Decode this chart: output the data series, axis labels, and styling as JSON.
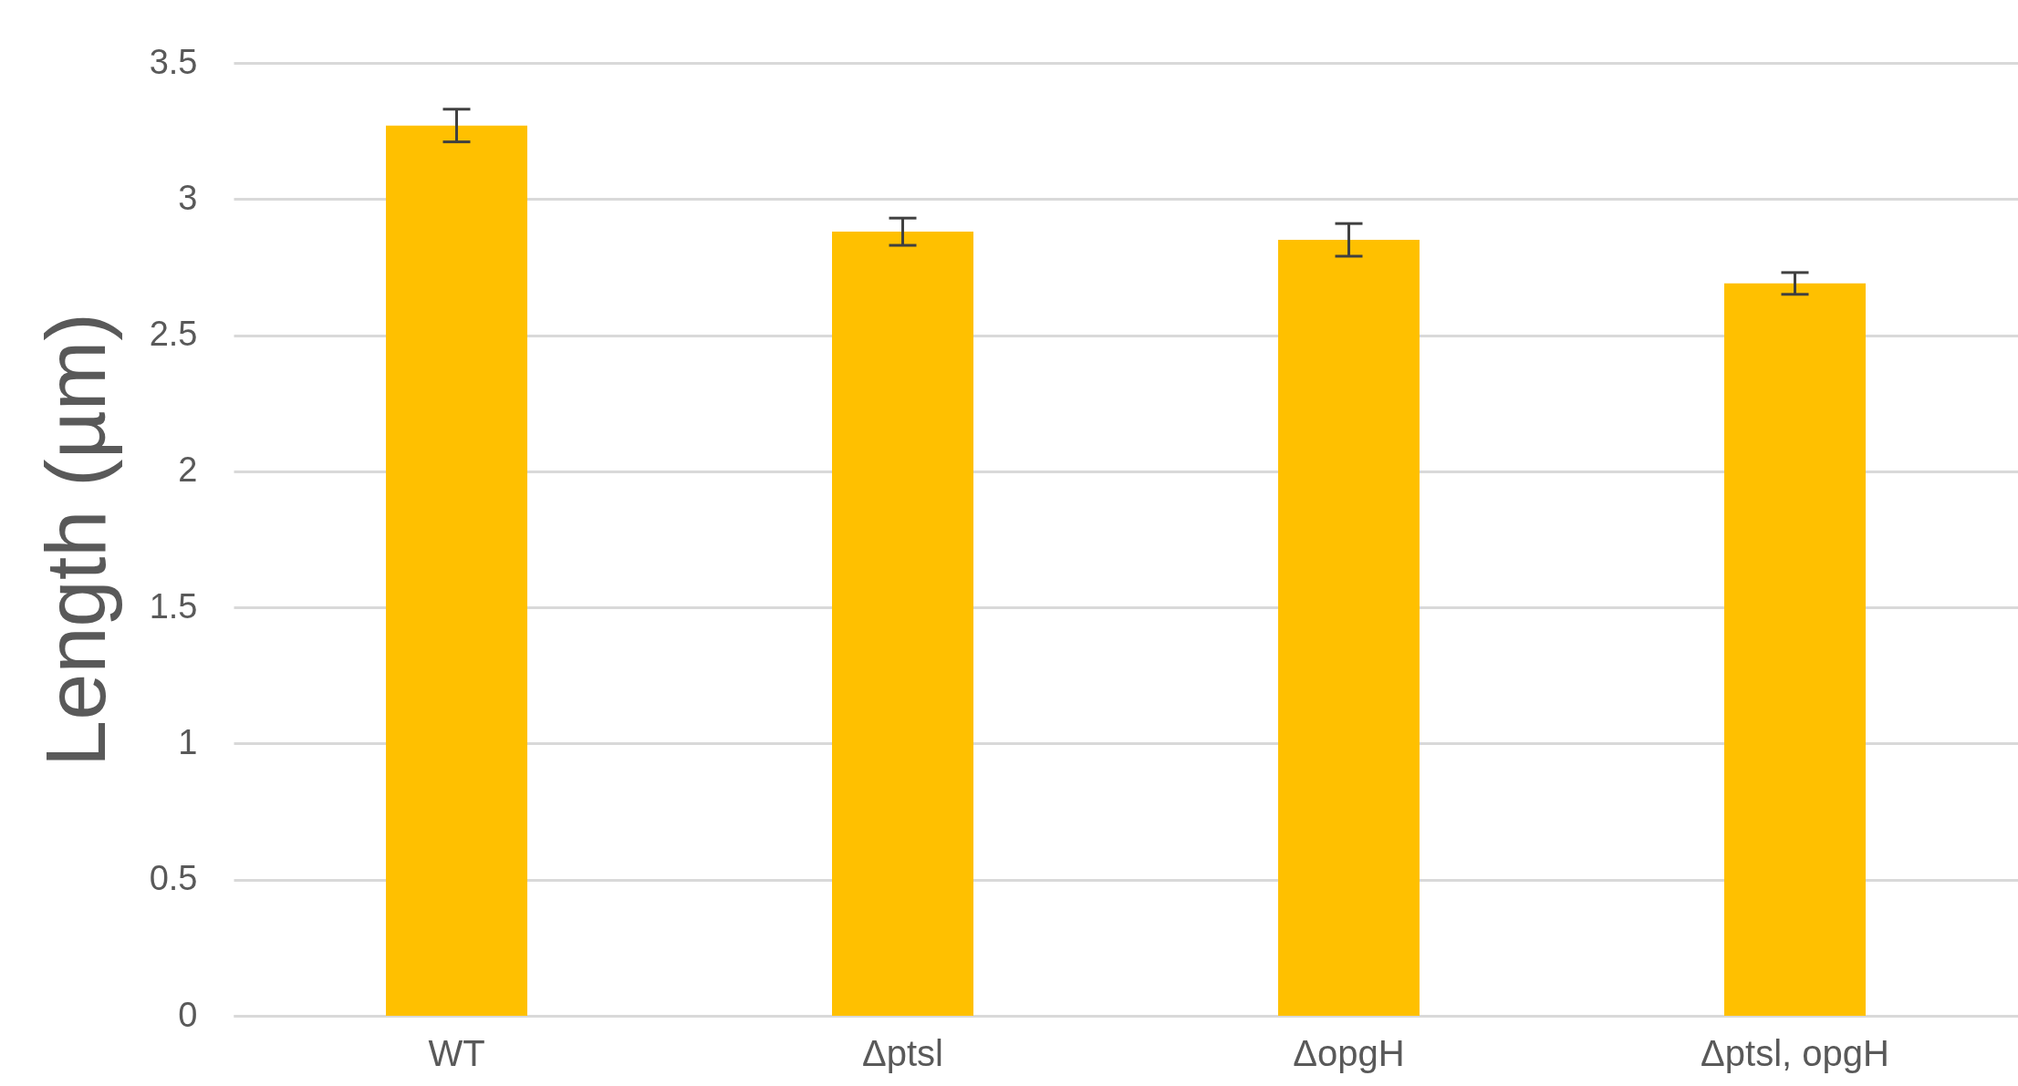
{
  "chart_data": {
    "type": "bar",
    "ylabel": "Length (µm)",
    "categories": [
      "WT",
      "Δptsl",
      "ΔopgH",
      "Δptsl, opgH"
    ],
    "values": [
      3.27,
      2.88,
      2.85,
      2.69
    ],
    "errors": [
      0.06,
      0.05,
      0.06,
      0.04
    ],
    "color": "#ffc000",
    "ylim": [
      0,
      3.5
    ],
    "yticks": [
      0,
      0.5,
      1,
      1.5,
      2,
      2.5,
      3,
      3.5
    ],
    "grid": "y"
  }
}
